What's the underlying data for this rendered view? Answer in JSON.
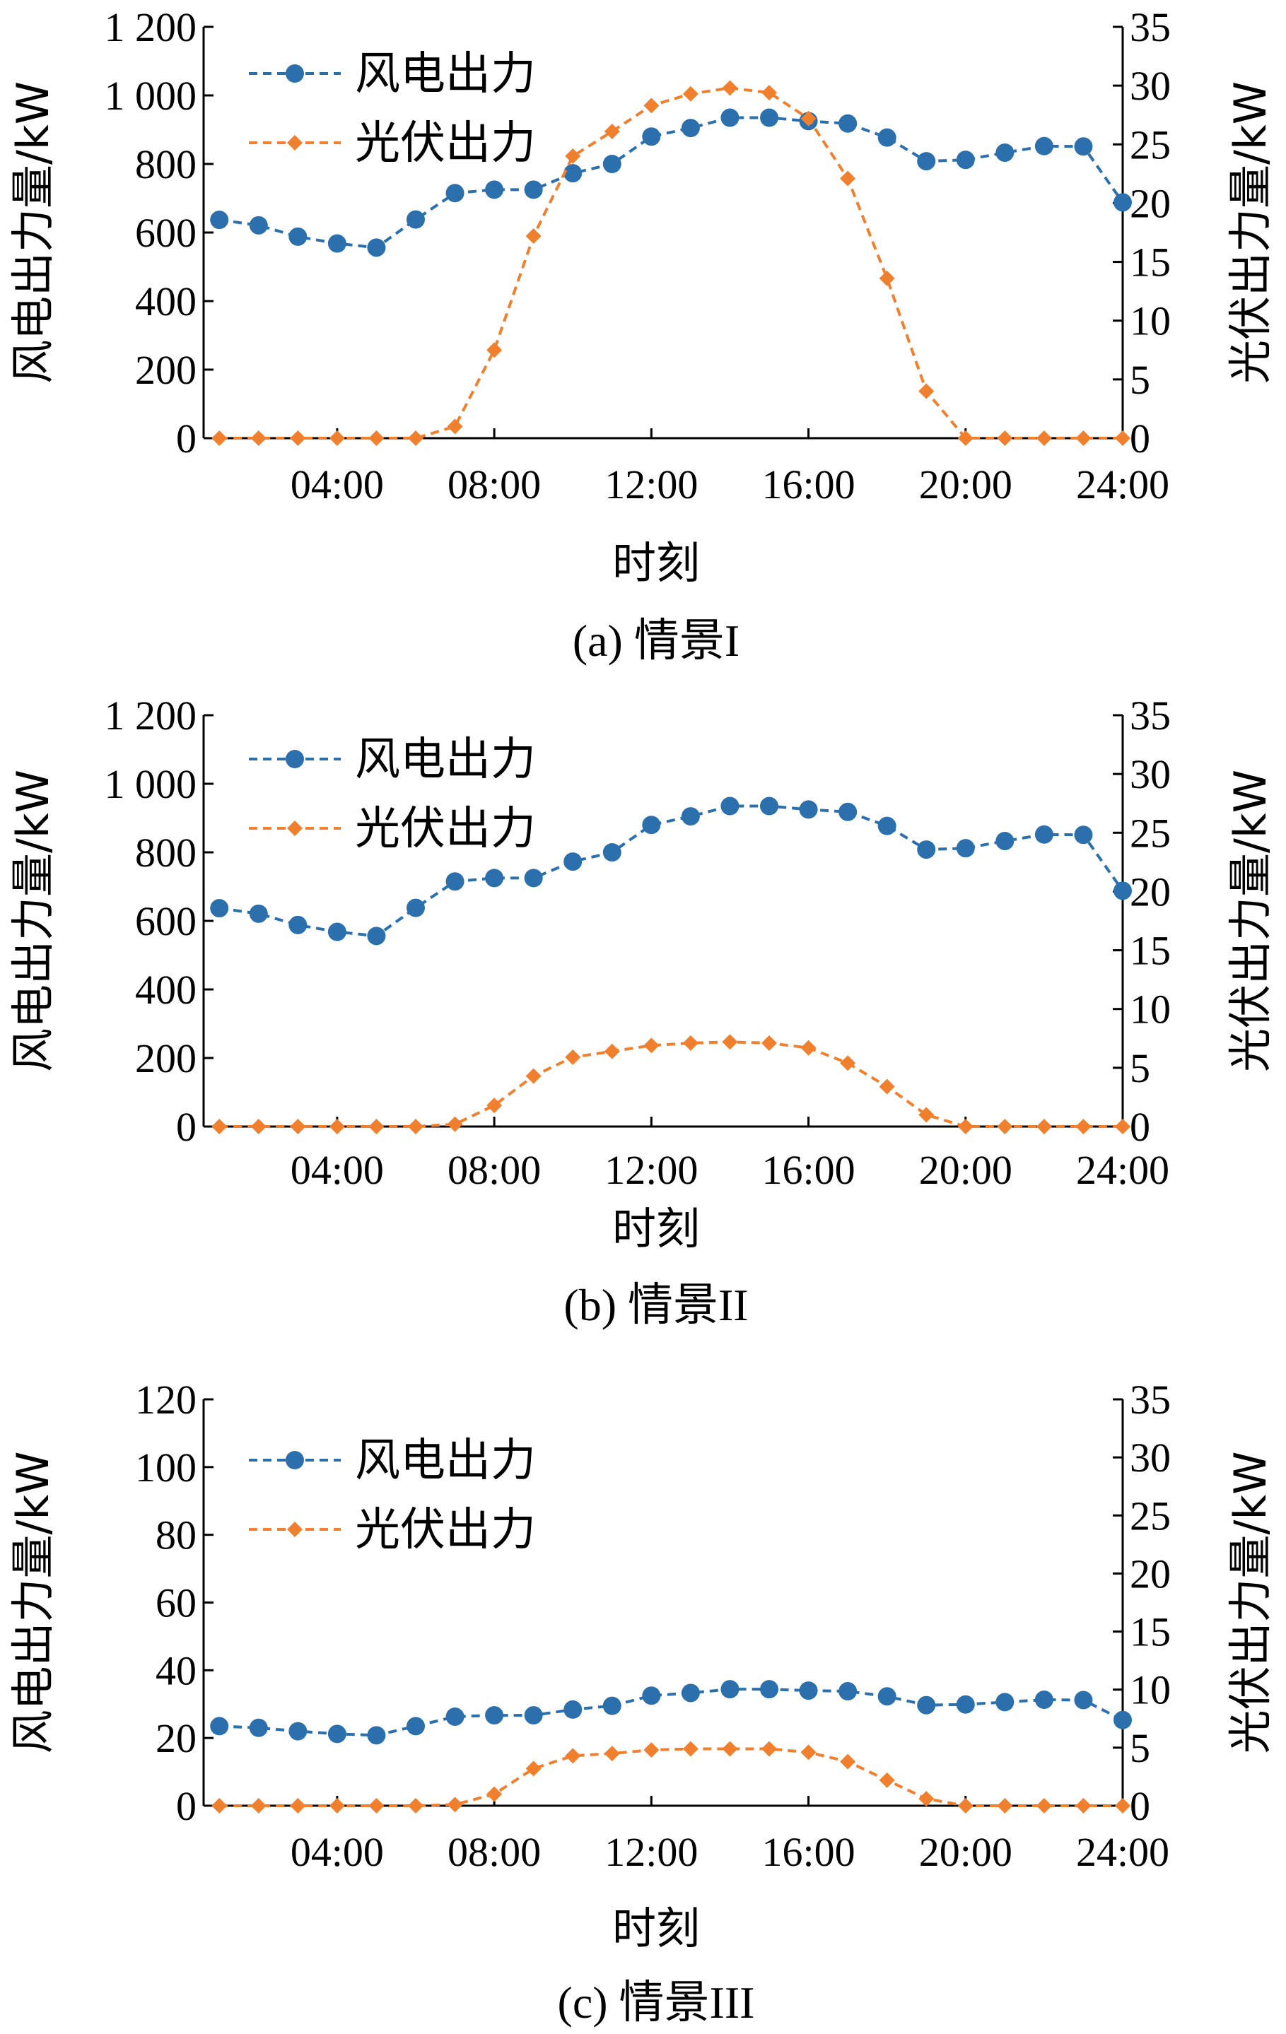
{
  "chart_data": [
    {
      "type": "line",
      "caption": "(a) 情景I",
      "xlabel": "时刻",
      "ylabel_left": "风电出力量/kW",
      "ylabel_right": "光伏出力量/kW",
      "x_ticks": [
        "04:00",
        "08:00",
        "12:00",
        "16:00",
        "20:00",
        "24:00"
      ],
      "y_left_ticks": [
        "0",
        "200",
        "400",
        "600",
        "800",
        "1 000",
        "1 200"
      ],
      "y_right_ticks": [
        "0",
        "5",
        "10",
        "15",
        "20",
        "25",
        "30",
        "35"
      ],
      "ylim_left": [
        0,
        1200
      ],
      "ylim_right": [
        0,
        35
      ],
      "xlim": [
        0.6,
        24
      ],
      "x": [
        1,
        2,
        3,
        4,
        5,
        6,
        7,
        8,
        9,
        10,
        11,
        12,
        13,
        14,
        15,
        16,
        17,
        18,
        19,
        20,
        21,
        22,
        23,
        24
      ],
      "legend_position": "top-left",
      "series": [
        {
          "name": "风电出力",
          "axis": "left",
          "marker": "circle",
          "color": "#2b6fad",
          "values": [
            637,
            621,
            588,
            568,
            556,
            638,
            715,
            725,
            725,
            773,
            800,
            880,
            905,
            935,
            935,
            925,
            918,
            877,
            808,
            812,
            833,
            852,
            851,
            688
          ]
        },
        {
          "name": "光伏出力",
          "axis": "right",
          "marker": "diamond",
          "color": "#f07f2e",
          "values": [
            0,
            0,
            0,
            0,
            0,
            0,
            1,
            7.5,
            17.2,
            24,
            26.1,
            28.3,
            29.3,
            29.8,
            29.4,
            27.2,
            22.1,
            13.6,
            4,
            0,
            0,
            0,
            0,
            0
          ]
        }
      ]
    },
    {
      "type": "line",
      "caption": "(b) 情景II",
      "xlabel": "时刻",
      "ylabel_left": "风电出力量/kW",
      "ylabel_right": "光伏出力量/kW",
      "x_ticks": [
        "04:00",
        "08:00",
        "12:00",
        "16:00",
        "20:00",
        "24:00"
      ],
      "y_left_ticks": [
        "0",
        "200",
        "400",
        "600",
        "800",
        "1 000",
        "1 200"
      ],
      "y_right_ticks": [
        "0",
        "5",
        "10",
        "15",
        "20",
        "25",
        "30",
        "35"
      ],
      "ylim_left": [
        0,
        1200
      ],
      "ylim_right": [
        0,
        35
      ],
      "xlim": [
        0.6,
        24
      ],
      "x": [
        1,
        2,
        3,
        4,
        5,
        6,
        7,
        8,
        9,
        10,
        11,
        12,
        13,
        14,
        15,
        16,
        17,
        18,
        19,
        20,
        21,
        22,
        23,
        24
      ],
      "legend_position": "top-left",
      "series": [
        {
          "name": "风电出力",
          "axis": "left",
          "marker": "circle",
          "color": "#2b6fad",
          "values": [
            637,
            621,
            588,
            568,
            556,
            638,
            715,
            725,
            725,
            773,
            800,
            880,
            905,
            935,
            935,
            925,
            918,
            877,
            808,
            812,
            833,
            852,
            851,
            688
          ]
        },
        {
          "name": "光伏出力",
          "axis": "right",
          "marker": "diamond",
          "color": "#f07f2e",
          "values": [
            0,
            0,
            0,
            0,
            0,
            0,
            0.2,
            1.8,
            4.3,
            5.9,
            6.4,
            6.9,
            7.1,
            7.2,
            7.1,
            6.7,
            5.4,
            3.4,
            1,
            0,
            0,
            0,
            0,
            0
          ]
        }
      ]
    },
    {
      "type": "line",
      "caption": "(c) 情景III",
      "xlabel": "时刻",
      "ylabel_left": "风电出力量/kW",
      "ylabel_right": "光伏出力量/kW",
      "x_ticks": [
        "04:00",
        "08:00",
        "12:00",
        "16:00",
        "20:00",
        "24:00"
      ],
      "y_left_ticks": [
        "0",
        "20",
        "40",
        "60",
        "80",
        "100",
        "120"
      ],
      "y_right_ticks": [
        "0",
        "5",
        "10",
        "15",
        "20",
        "25",
        "30",
        "35"
      ],
      "ylim_left": [
        0,
        120
      ],
      "ylim_right": [
        0,
        35
      ],
      "xlim": [
        0.6,
        24
      ],
      "x": [
        1,
        2,
        3,
        4,
        5,
        6,
        7,
        8,
        9,
        10,
        11,
        12,
        13,
        14,
        15,
        16,
        17,
        18,
        19,
        20,
        21,
        22,
        23,
        24
      ],
      "legend_position": "top-left",
      "series": [
        {
          "name": "风电出力",
          "axis": "left",
          "marker": "circle",
          "color": "#2b6fad",
          "values": [
            23.5,
            23,
            22,
            21.2,
            20.8,
            23.5,
            26.3,
            26.7,
            26.7,
            28.4,
            29.5,
            32.5,
            33.3,
            34.4,
            34.4,
            34,
            33.8,
            32.3,
            29.7,
            29.9,
            30.6,
            31.3,
            31.2,
            25.3
          ]
        },
        {
          "name": "光伏出力",
          "axis": "right",
          "marker": "diamond",
          "color": "#f07f2e",
          "values": [
            0,
            0,
            0,
            0,
            0,
            0,
            0.1,
            1,
            3.2,
            4.3,
            4.5,
            4.8,
            4.9,
            4.9,
            4.9,
            4.6,
            3.8,
            2.2,
            0.6,
            0,
            0,
            0,
            0,
            0
          ]
        }
      ]
    }
  ]
}
